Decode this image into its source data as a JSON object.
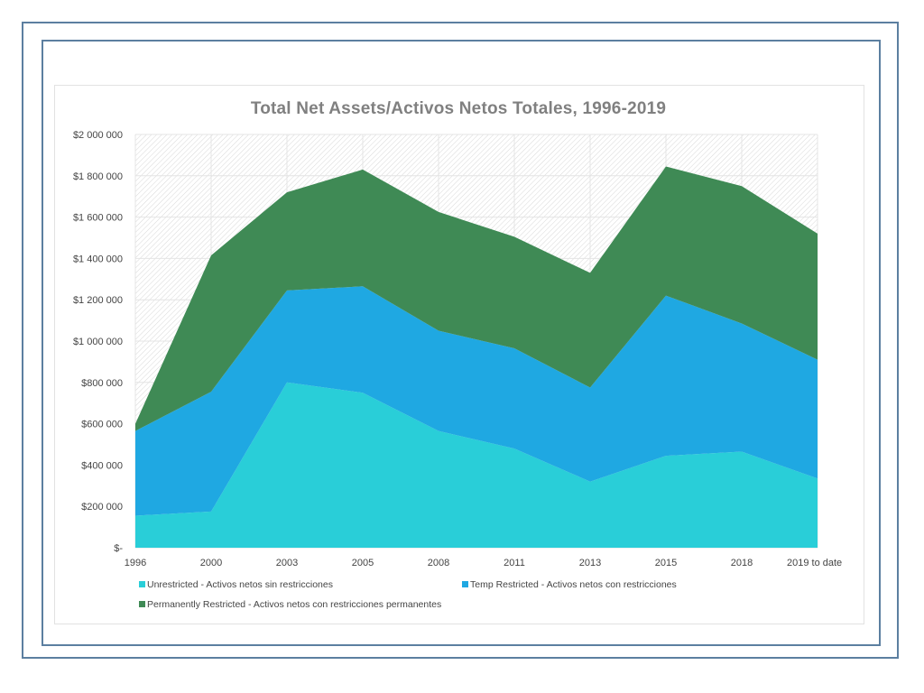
{
  "chart_data": {
    "type": "area",
    "stacked": true,
    "title": "Total Net Assets/Activos Netos Totales, 1996-2019",
    "categories": [
      "1996",
      "2000",
      "2003",
      "2005",
      "2008",
      "2011",
      "2013",
      "2015",
      "2018",
      "2019 to date"
    ],
    "y_ticks": [
      "$-",
      "$200 000",
      "$400 000",
      "$600 000",
      "$800 000",
      "$1 000 000",
      "$1 200 000",
      "$1 400 000",
      "$1 600 000",
      "$1 800 000",
      "$2 000 000"
    ],
    "ylim": [
      0,
      2000000
    ],
    "grid": true,
    "legend_position": "bottom",
    "series": [
      {
        "name": "Unrestricted - Activos netos sin restricciones",
        "color": "#29ced8",
        "values": [
          155000,
          175000,
          800000,
          750000,
          565000,
          480000,
          320000,
          445000,
          465000,
          335000
        ]
      },
      {
        "name": "Temp Restricted - Activos netos con restricciones",
        "color": "#1fa8e2",
        "values": [
          410000,
          580000,
          445000,
          515000,
          485000,
          485000,
          455000,
          775000,
          620000,
          575000
        ]
      },
      {
        "name": "Permanently Restricted - Activos netos con restricciones permanentes",
        "color": "#3f8a55",
        "values": [
          35000,
          660000,
          475000,
          565000,
          575000,
          540000,
          555000,
          625000,
          665000,
          610000
        ]
      }
    ]
  }
}
